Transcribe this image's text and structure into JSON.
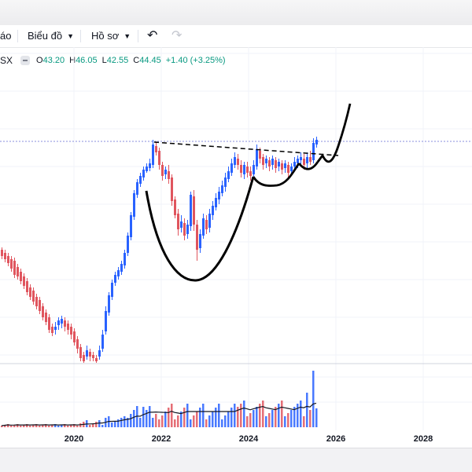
{
  "toolbar": {
    "cut_label": "áo",
    "chart_menu": "Biểu đồ",
    "profile_menu": "Hồ sơ",
    "undo_icon": "undo-icon",
    "redo_icon": "redo-icon"
  },
  "legend": {
    "symbol_fragment": "SX",
    "o_key": "O",
    "o_val": "43.20",
    "h_key": "H",
    "h_val": "46.05",
    "l_key": "L",
    "l_val": "42.55",
    "c_key": "C",
    "c_val": "44.45",
    "change": "+1.40 (+3.25%)"
  },
  "colors": {
    "up": "#2962ff",
    "down": "#e0555e",
    "up_volume": "#2962ff",
    "down_volume": "#e0555e",
    "price_line": "#8a8fdc",
    "legend_value": "#089981"
  },
  "chart_data": {
    "type": "candlestick",
    "x_axis_ticks": [
      "2020",
      "2022",
      "2024",
      "2026",
      "2028"
    ],
    "last_bar": {
      "open": 43.2,
      "high": 46.05,
      "low": 42.55,
      "close": 44.45,
      "change": 1.4,
      "change_pct": 3.25
    },
    "annotations": [
      "cup-and-handle drawing",
      "dashed resistance trendline",
      "projected breakout arrow"
    ],
    "volume_pane": true,
    "volume_moving_average": true,
    "grid": true
  }
}
